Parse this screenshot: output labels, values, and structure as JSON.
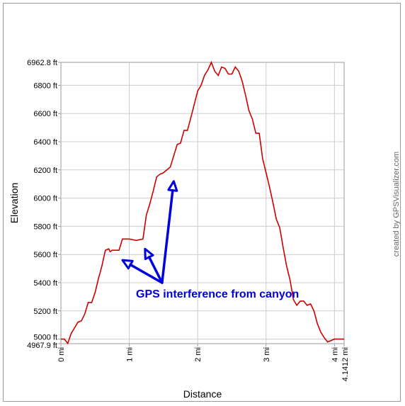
{
  "chart_data": {
    "type": "line",
    "title": "",
    "xlabel": "Distance",
    "ylabel": "Elevation",
    "credit": "created by GPSVisualizer.com",
    "xlim": [
      0,
      4.1412
    ],
    "ylim": [
      4967.9,
      6962.8
    ],
    "grid": true,
    "line_color": "#cc0000",
    "x_ticks": [
      {
        "value": 0,
        "label": "0 mi"
      },
      {
        "value": 1,
        "label": "1 mi"
      },
      {
        "value": 2,
        "label": "2 mi"
      },
      {
        "value": 3,
        "label": "3 mi"
      },
      {
        "value": 4,
        "label": "4 mi"
      },
      {
        "value": 4.1412,
        "label": "4.1412 mi"
      }
    ],
    "y_ticks": [
      {
        "value": 4967.9,
        "label": "4967.9 ft"
      },
      {
        "value": 5000,
        "label": "5000 ft"
      },
      {
        "value": 5200,
        "label": "5200 ft"
      },
      {
        "value": 5400,
        "label": "5400 ft"
      },
      {
        "value": 5600,
        "label": "5600 ft"
      },
      {
        "value": 5800,
        "label": "5800 ft"
      },
      {
        "value": 6000,
        "label": "6000 ft"
      },
      {
        "value": 6200,
        "label": "6200 ft"
      },
      {
        "value": 6400,
        "label": "6400 ft"
      },
      {
        "value": 6600,
        "label": "6600 ft"
      },
      {
        "value": 6800,
        "label": "6800 ft"
      },
      {
        "value": 6962.8,
        "label": "6962.8 ft"
      }
    ],
    "series": [
      {
        "x": [
          0,
          0.05,
          0.1,
          0.15,
          0.2,
          0.25,
          0.3,
          0.35,
          0.4,
          0.45,
          0.5,
          0.55,
          0.6,
          0.65,
          0.7,
          0.72,
          0.75,
          0.8,
          0.85,
          0.9,
          0.95,
          1.0,
          1.1,
          1.2,
          1.25,
          1.3,
          1.35,
          1.4,
          1.45,
          1.5,
          1.6,
          1.7,
          1.75,
          1.8,
          1.85,
          1.9,
          2.0,
          2.05,
          2.1,
          2.15,
          2.2,
          2.25,
          2.3,
          2.35,
          2.4,
          2.45,
          2.5,
          2.55,
          2.6,
          2.65,
          2.7,
          2.75,
          2.8,
          2.85,
          2.9,
          2.95,
          3.0,
          3.05,
          3.1,
          3.15,
          3.2,
          3.25,
          3.3,
          3.35,
          3.4,
          3.45,
          3.5,
          3.55,
          3.6,
          3.65,
          3.7,
          3.75,
          3.8,
          3.85,
          3.9,
          3.95,
          4.0,
          4.05,
          4.1,
          4.1412
        ],
        "y": [
          5000,
          5000,
          4970,
          5040,
          5080,
          5120,
          5130,
          5180,
          5260,
          5260,
          5330,
          5430,
          5520,
          5630,
          5640,
          5620,
          5630,
          5630,
          5630,
          5710,
          5710,
          5710,
          5700,
          5710,
          5880,
          5960,
          6050,
          6150,
          6170,
          6180,
          6220,
          6380,
          6390,
          6480,
          6480,
          6570,
          6760,
          6800,
          6870,
          6910,
          6962.8,
          6900,
          6870,
          6930,
          6920,
          6880,
          6880,
          6930,
          6900,
          6830,
          6730,
          6620,
          6560,
          6460,
          6460,
          6280,
          6180,
          6080,
          5970,
          5850,
          5790,
          5650,
          5520,
          5420,
          5280,
          5240,
          5270,
          5270,
          5240,
          5250,
          5200,
          5110,
          5050,
          5010,
          4980,
          4990,
          5000,
          5000,
          5000,
          5000
        ]
      }
    ],
    "annotation": {
      "text": "GPS interference from canyon",
      "color": "#0000dd",
      "arrow_targets": [
        {
          "x": 0.9,
          "y": 5560
        },
        {
          "x": 1.23,
          "y": 5640
        },
        {
          "x": 1.65,
          "y": 6120
        }
      ],
      "arrow_origin": {
        "x": 1.5,
        "y": 5400
      }
    }
  }
}
